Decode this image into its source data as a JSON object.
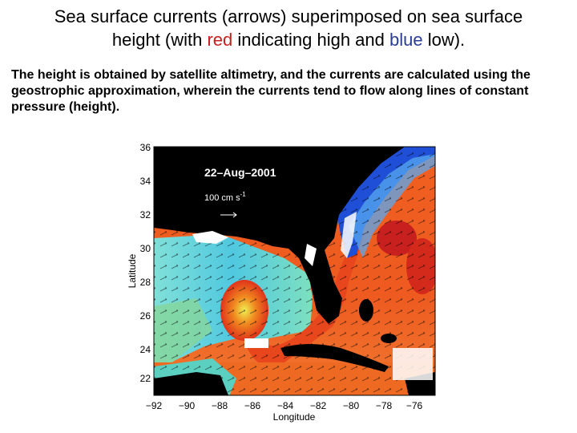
{
  "title": {
    "line1": "Sea surface currents (arrows) superimposed on sea surface",
    "line2_before": "height (with ",
    "line2_red": "red",
    "line2_mid": " indicating high and ",
    "line2_blue": "blue",
    "line2_after": " low).",
    "red_color": "#c8201e",
    "blue_color": "#2a3c96"
  },
  "body": "The height is obtained by satellite altimetry, and the currents are calculated using the geostrophic approximation, wherein the currents tend to flow along lines of constant pressure (height).",
  "figure": {
    "date_label": "22–Aug–2001",
    "scale_label": "100 cm s",
    "scale_exponent": "-1",
    "xlabel": "Longitude",
    "ylabel": "Latitude",
    "x_ticks": [
      "−92",
      "−90",
      "−88",
      "−86",
      "−84",
      "−82",
      "−80",
      "−78",
      "−76"
    ],
    "y_ticks": [
      "36",
      "34",
      "32",
      "30",
      "28",
      "26",
      "24",
      "22"
    ],
    "land_color": "#000000",
    "high_color": "#e0331a",
    "low_color": "#1f4fd6"
  }
}
